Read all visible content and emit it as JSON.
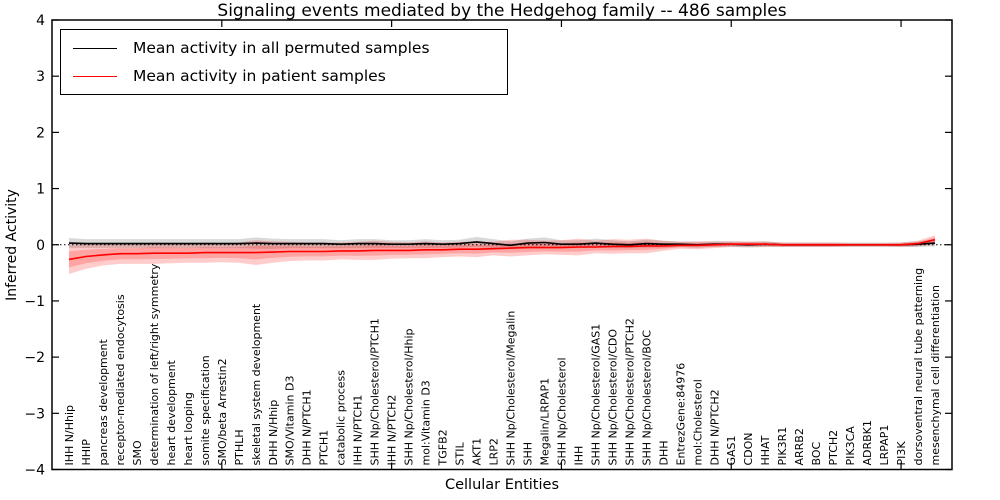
{
  "figure": {
    "title": "Signaling events mediated by the Hedgehog family -- 486 samples",
    "xlabel": "Cellular Entities",
    "ylabel": "Inferred Activity"
  },
  "legend": {
    "entries": [
      {
        "label": "Mean activity in all permuted samples",
        "color": "#000000"
      },
      {
        "label": "Mean activity in patient samples",
        "color": "#ff0000"
      }
    ]
  },
  "chart_data": {
    "type": "line",
    "title": "Signaling events mediated by the Hedgehog family -- 486 samples",
    "xlabel": "Cellular Entities",
    "ylabel": "Inferred Activity",
    "ylim": [
      -4,
      4
    ],
    "yticks": [
      4,
      3,
      2,
      1,
      0,
      -1,
      -2,
      -3,
      -4
    ],
    "x_axis_minor_ticks_at": [
      10,
      20,
      30,
      40,
      50
    ],
    "grid": false,
    "zero_line_style": "dotted",
    "legend_position": "upper left",
    "categories": [
      "IHH N/Hhip",
      "HHIP",
      "pancreas development",
      "receptor-mediated endocytosis",
      "SMO",
      "determination of left/right symmetry",
      "heart development",
      "heart looping",
      "somite specification",
      "SMO/beta Arrestin2",
      "PTHLH",
      "skeletal system development",
      "DHH N/Hhip",
      "SMO/Vitamin D3",
      "DHH N/PTCH1",
      "PTCH1",
      "catabolic process",
      "IHH N/PTCH1",
      "SHH Np/Cholesterol/PTCH1",
      "IHH N/PTCH2",
      "SHH Np/Cholesterol/Hhip",
      "mol:Vitamin D3",
      "TGFB2",
      "STIL",
      "AKT1",
      "LRP2",
      "SHH Np/Cholesterol/Megalin",
      "SHH",
      "Megalin/LRPAP1",
      "SHH Np/Cholesterol",
      "IHH",
      "SHH Np/Cholesterol/GAS1",
      "SHH Np/Cholesterol/CDO",
      "SHH Np/Cholesterol/PTCH2",
      "SHH Np/Cholesterol/BOC",
      "DHH",
      "EntrezGene:84976",
      "mol:Cholesterol",
      "DHH N/PTCH2",
      "GAS1",
      "CDON",
      "HHAT",
      "PIK3R1",
      "ARRB2",
      "BOC",
      "PTCH2",
      "PIK3CA",
      "ADRBK1",
      "LRPAP1",
      "PI3K",
      "dorsoventral neural tube patterning",
      "mesenchymal cell differentiation"
    ],
    "series": [
      {
        "name": "Mean activity in all permuted samples",
        "color": "#000000",
        "band_alpha": 0.15,
        "values": [
          0.03,
          0.02,
          0.02,
          0.02,
          0.02,
          0.02,
          0.02,
          0.02,
          0.02,
          0.02,
          0.02,
          0.03,
          0.02,
          0.02,
          0.02,
          0.02,
          0.01,
          0.02,
          0.02,
          0.01,
          0.01,
          0.02,
          0.01,
          0.02,
          0.05,
          0.02,
          -0.01,
          0.03,
          0.04,
          0.01,
          0.01,
          0.03,
          0.01,
          0.0,
          0.02,
          0.01,
          0.01,
          0.0,
          0.01,
          0.01,
          0.0,
          0.01,
          0.0,
          0.0,
          0.0,
          0.0,
          0.0,
          0.0,
          0.0,
          0.0,
          0.01,
          0.03
        ],
        "band_halfwidth": [
          0.09,
          0.08,
          0.08,
          0.08,
          0.08,
          0.08,
          0.08,
          0.08,
          0.08,
          0.08,
          0.08,
          0.1,
          0.09,
          0.08,
          0.08,
          0.08,
          0.07,
          0.08,
          0.08,
          0.07,
          0.07,
          0.08,
          0.07,
          0.07,
          0.09,
          0.08,
          0.07,
          0.08,
          0.09,
          0.07,
          0.07,
          0.08,
          0.07,
          0.06,
          0.07,
          0.06,
          0.05,
          0.05,
          0.05,
          0.05,
          0.05,
          0.05,
          0.04,
          0.04,
          0.04,
          0.04,
          0.04,
          0.04,
          0.04,
          0.04,
          0.05,
          0.06
        ]
      },
      {
        "name": "Mean activity in patient samples",
        "color": "#ff0000",
        "band_alpha": 0.2,
        "values": [
          -0.26,
          -0.21,
          -0.18,
          -0.16,
          -0.16,
          -0.15,
          -0.15,
          -0.15,
          -0.14,
          -0.14,
          -0.14,
          -0.14,
          -0.13,
          -0.12,
          -0.12,
          -0.12,
          -0.11,
          -0.11,
          -0.1,
          -0.1,
          -0.1,
          -0.09,
          -0.09,
          -0.08,
          -0.08,
          -0.07,
          -0.06,
          -0.05,
          -0.05,
          -0.05,
          -0.04,
          -0.04,
          -0.03,
          -0.03,
          -0.02,
          -0.02,
          -0.01,
          -0.01,
          0.0,
          0.01,
          0.01,
          0.01,
          0.0,
          0.0,
          0.0,
          0.0,
          0.0,
          0.0,
          0.0,
          0.0,
          0.02,
          0.09
        ],
        "band_halfwidth": [
          0.26,
          0.22,
          0.19,
          0.18,
          0.18,
          0.19,
          0.18,
          0.17,
          0.18,
          0.17,
          0.18,
          0.22,
          0.19,
          0.17,
          0.16,
          0.16,
          0.15,
          0.16,
          0.17,
          0.15,
          0.14,
          0.15,
          0.13,
          0.13,
          0.14,
          0.12,
          0.15,
          0.14,
          0.12,
          0.13,
          0.15,
          0.11,
          0.13,
          0.12,
          0.13,
          0.09,
          0.06,
          0.07,
          0.06,
          0.05,
          0.05,
          0.05,
          0.04,
          0.04,
          0.04,
          0.04,
          0.03,
          0.03,
          0.03,
          0.04,
          0.05,
          0.08
        ]
      }
    ]
  }
}
